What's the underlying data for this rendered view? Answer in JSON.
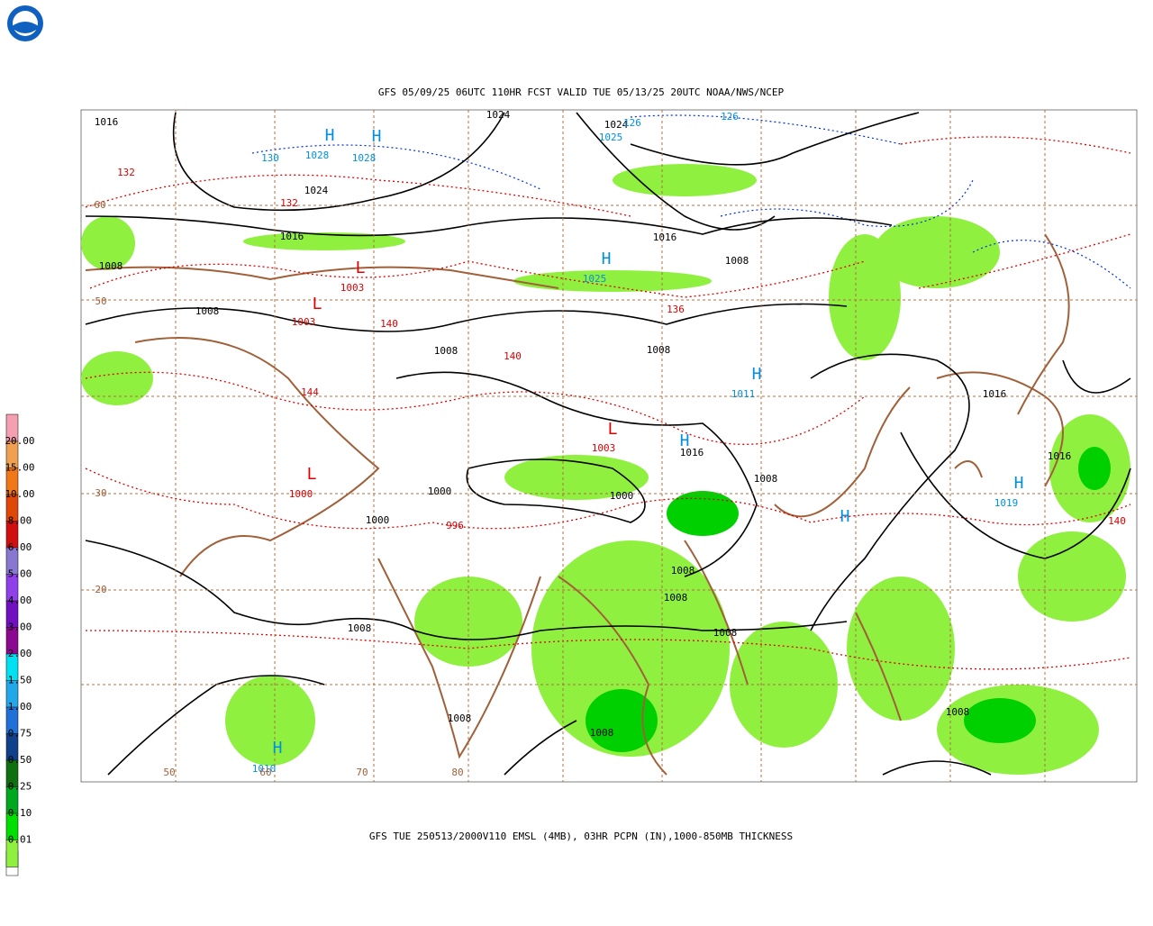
{
  "header": {
    "title": "GFS 05/09/25 06UTC 110HR FCST VALID TUE 05/13/25 20UTC NOAA/NWS/NCEP"
  },
  "footer": {
    "caption": "GFS TUE 250513/2000V110 EMSL (4MB), 03HR PCPN (IN),1000-850MB THICKNESS"
  },
  "legend": {
    "top_color": "#f4a0b0",
    "items": [
      {
        "label": "20.00",
        "color": "#f0a050"
      },
      {
        "label": "15.00",
        "color": "#f07818"
      },
      {
        "label": "10.00",
        "color": "#e04808"
      },
      {
        "label": "8.00",
        "color": "#d01010"
      },
      {
        "label": "6.00",
        "color": "#8878d0"
      },
      {
        "label": "5.00",
        "color": "#9040e8"
      },
      {
        "label": "4.00",
        "color": "#7010c0"
      },
      {
        "label": "3.00",
        "color": "#8c0890"
      },
      {
        "label": "2.00",
        "color": "#00e0f0"
      },
      {
        "label": "1.50",
        "color": "#20a8e8"
      },
      {
        "label": "1.00",
        "color": "#2070d8"
      },
      {
        "label": "0.75",
        "color": "#10408a"
      },
      {
        "label": "0.50",
        "color": "#107010"
      },
      {
        "label": "0.25",
        "color": "#00a820"
      },
      {
        "label": "0.10",
        "color": "#00e000"
      },
      {
        "label": "0.01",
        "color": "#90f040"
      }
    ]
  },
  "map": {
    "labels": [
      "1016",
      "1024",
      "1024",
      "126",
      "126",
      "1025",
      "H",
      "H",
      "1028",
      "1028",
      "130",
      "132",
      "1024",
      "132",
      "60",
      "1016",
      "1016",
      "1008",
      "L",
      "1003",
      "L",
      "1003",
      "50",
      "1008",
      "H",
      "1025",
      "1008",
      "136",
      "140",
      "1008",
      "1008",
      "140",
      "H",
      "1011",
      "1016",
      "144",
      "L",
      "1003",
      "H",
      "1016",
      "1008",
      "L",
      "1000",
      "1000",
      "30",
      "20",
      "996",
      "1000",
      "1000",
      "H",
      "1016",
      "H",
      "1019",
      "140",
      "1008",
      "1008",
      "1008",
      "1008",
      "H",
      "1010",
      "1008",
      "1008",
      "1008",
      "50",
      "60",
      "70",
      "80"
    ]
  }
}
